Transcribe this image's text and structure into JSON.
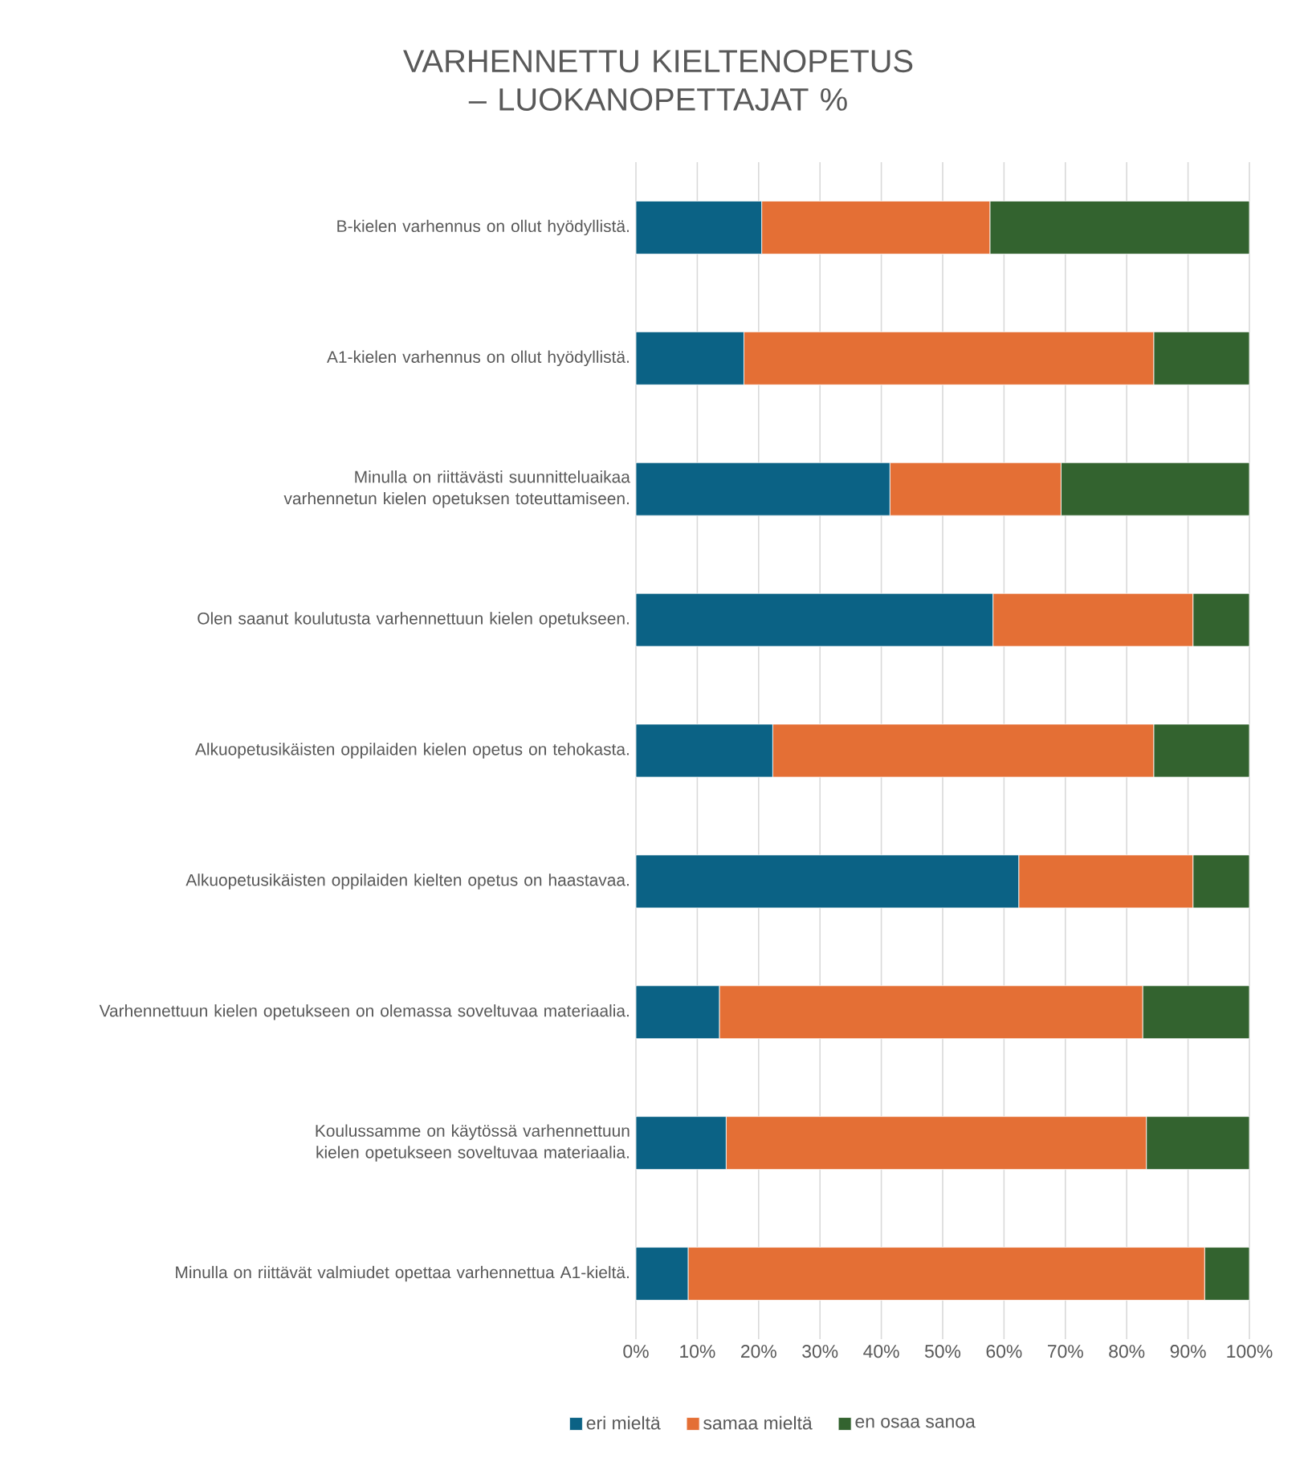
{
  "chart_data": {
    "type": "bar",
    "orientation": "horizontal",
    "stacked": true,
    "title": "VARHENNETTU KIELTENOPETUS – LUOKANOPETTAJAT %",
    "categories": [
      "B-kielen varhennus on ollut hyödyllistä.",
      "A1-kielen varhennus on ollut hyödyllistä.",
      "Minulla on riittävästi suunnitteluaikaa varhennetun kielen opetuksen toteuttamiseen.",
      "Olen saanut koulutusta varhennettuun kielen opetukseen.",
      "Alkuopetusikäisten oppilaiden kielen opetus on tehokasta.",
      "Alkuopetusikäisten oppilaiden kielten opetus on haastavaa.",
      "Varhennettuun kielen opetukseen on olemassa soveltuvaa materiaalia.",
      "Koulussamme on käytössä varhennettuun kielen opetukseen soveltuvaa materiaalia.",
      "Minulla on riittävät valmiudet opettaa varhennettua A1-kieltä."
    ],
    "series": [
      {
        "name": "eri mieltä",
        "color": "#0b6285",
        "values": [
          20.5,
          17.6,
          41.4,
          58.2,
          22.3,
          62.4,
          13.6,
          14.7,
          8.5
        ]
      },
      {
        "name": "samaa mieltä",
        "color": "#e46f35",
        "values": [
          37.2,
          66.8,
          27.9,
          32.6,
          62.1,
          28.4,
          69.0,
          68.5,
          84.2
        ]
      },
      {
        "name": "en osaa sanoa",
        "color": "#33632f",
        "values": [
          42.3,
          15.6,
          30.7,
          9.2,
          15.6,
          9.2,
          17.4,
          16.8,
          7.3
        ]
      }
    ],
    "xlim": [
      0,
      100
    ],
    "xticks": [
      {
        "value": 0,
        "label": "0%"
      },
      {
        "value": 10,
        "label": "10%"
      },
      {
        "value": 20,
        "label": "20%"
      },
      {
        "value": 30,
        "label": "30%"
      },
      {
        "value": 40,
        "label": "40%"
      },
      {
        "value": 50,
        "label": "50%"
      },
      {
        "value": 60,
        "label": "60%"
      },
      {
        "value": 70,
        "label": "70%"
      },
      {
        "value": 80,
        "label": "80%"
      },
      {
        "value": 90,
        "label": "90%"
      },
      {
        "value": 100,
        "label": "100%"
      }
    ],
    "grid": "x",
    "legend": "bottom"
  }
}
